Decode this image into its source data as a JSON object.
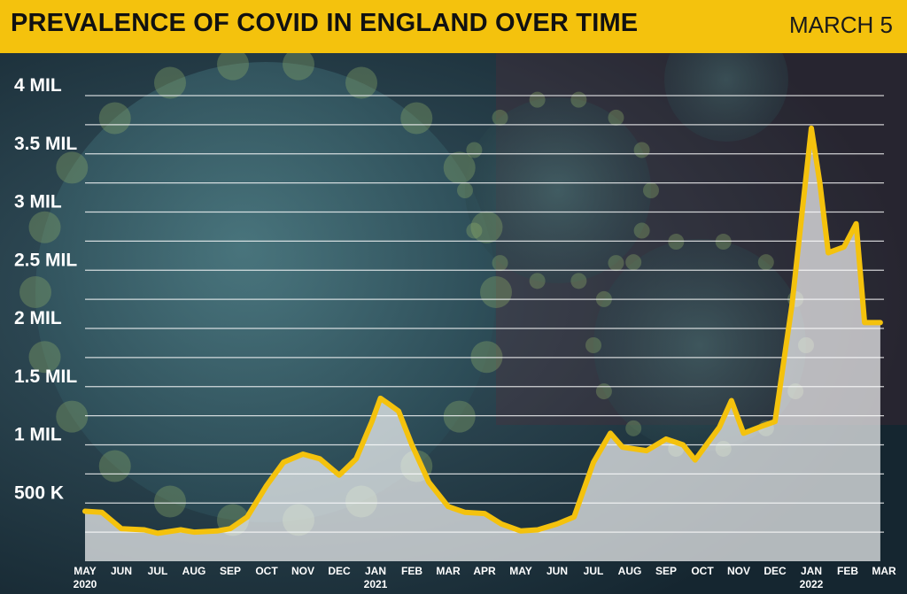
{
  "header": {
    "title": "PREVALENCE OF COVID IN ENGLAND OVER TIME",
    "date": "MARCH 5"
  },
  "colors": {
    "banner": "#f4c20d",
    "line": "#f4c20d",
    "area": "#ffffff",
    "gridline": "#ffffff"
  },
  "chart_data": {
    "type": "area",
    "title": "PREVALENCE OF COVID IN ENGLAND OVER TIME",
    "xlabel": "",
    "ylabel": "",
    "ylim": [
      0,
      4000000
    ],
    "xlim": [
      "2020-05",
      "2022-03"
    ],
    "grid": true,
    "y_tick_values": [
      500000,
      1000000,
      1500000,
      2000000,
      2500000,
      3000000,
      3500000,
      4000000
    ],
    "y_tick_labels": [
      "500 K",
      "1 MIL",
      "1.5 MIL",
      "2 MIL",
      "2.5 MIL",
      "3 MIL",
      "3.5 MIL",
      "4 MIL"
    ],
    "x_tick_labels": [
      {
        "label": "MAY",
        "sub": "2020"
      },
      {
        "label": "JUN"
      },
      {
        "label": "JUL"
      },
      {
        "label": "AUG"
      },
      {
        "label": "SEP"
      },
      {
        "label": "OCT"
      },
      {
        "label": "NOV"
      },
      {
        "label": "DEC"
      },
      {
        "label": "JAN",
        "sub": "2021"
      },
      {
        "label": "FEB"
      },
      {
        "label": "MAR"
      },
      {
        "label": "APR"
      },
      {
        "label": "MAY"
      },
      {
        "label": "JUN"
      },
      {
        "label": "JUL"
      },
      {
        "label": "AUG"
      },
      {
        "label": "SEP"
      },
      {
        "label": "OCT"
      },
      {
        "label": "NOV"
      },
      {
        "label": "DEC"
      },
      {
        "label": "JAN",
        "sub": "2022"
      },
      {
        "label": "FEB"
      },
      {
        "label": "MAR"
      }
    ],
    "series": [
      {
        "points": [
          [
            "2020-05-01",
            430000
          ],
          [
            "2020-05-15",
            420000
          ],
          [
            "2020-06-01",
            280000
          ],
          [
            "2020-06-20",
            270000
          ],
          [
            "2020-07-01",
            240000
          ],
          [
            "2020-07-20",
            270000
          ],
          [
            "2020-08-01",
            250000
          ],
          [
            "2020-08-20",
            260000
          ],
          [
            "2020-09-01",
            280000
          ],
          [
            "2020-09-15",
            380000
          ],
          [
            "2020-10-01",
            650000
          ],
          [
            "2020-10-15",
            850000
          ],
          [
            "2020-11-01",
            920000
          ],
          [
            "2020-11-15",
            880000
          ],
          [
            "2020-12-01",
            740000
          ],
          [
            "2020-12-15",
            880000
          ],
          [
            "2020-12-28",
            1200000
          ],
          [
            "2021-01-05",
            1400000
          ],
          [
            "2021-01-12",
            1350000
          ],
          [
            "2021-01-20",
            1290000
          ],
          [
            "2021-02-01",
            1000000
          ],
          [
            "2021-02-15",
            680000
          ],
          [
            "2021-03-01",
            470000
          ],
          [
            "2021-03-15",
            420000
          ],
          [
            "2021-04-01",
            410000
          ],
          [
            "2021-04-15",
            320000
          ],
          [
            "2021-05-01",
            260000
          ],
          [
            "2021-05-15",
            270000
          ],
          [
            "2021-06-01",
            320000
          ],
          [
            "2021-06-15",
            380000
          ],
          [
            "2021-07-01",
            850000
          ],
          [
            "2021-07-15",
            1100000
          ],
          [
            "2021-07-25",
            980000
          ],
          [
            "2021-08-15",
            950000
          ],
          [
            "2021-09-01",
            1050000
          ],
          [
            "2021-09-15",
            1000000
          ],
          [
            "2021-09-25",
            870000
          ],
          [
            "2021-10-15",
            1150000
          ],
          [
            "2021-10-25",
            1380000
          ],
          [
            "2021-11-05",
            1100000
          ],
          [
            "2021-11-20",
            1160000
          ],
          [
            "2021-12-01",
            1200000
          ],
          [
            "2021-12-15",
            2200000
          ],
          [
            "2022-01-01",
            3720000
          ],
          [
            "2022-01-08",
            3250000
          ],
          [
            "2022-01-15",
            2650000
          ],
          [
            "2022-01-28",
            2700000
          ],
          [
            "2022-02-08",
            2900000
          ],
          [
            "2022-02-15",
            2050000
          ],
          [
            "2022-02-28",
            2050000
          ]
        ]
      }
    ]
  }
}
